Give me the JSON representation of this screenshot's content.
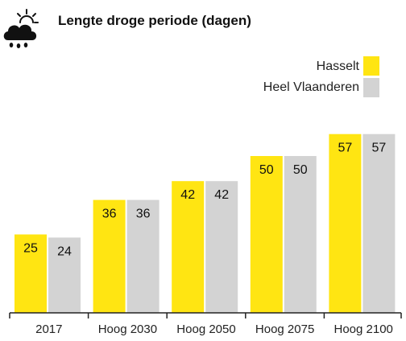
{
  "icon": "sun-cloud-rain-icon",
  "colors": {
    "hasselt": "#FFE512",
    "vlaanderen": "#D3D3D3",
    "axis": "#222222"
  },
  "chart_data": {
    "type": "bar",
    "title": "Lengte droge periode (dagen)",
    "categories": [
      "2017",
      "Hoog 2030",
      "Hoog 2050",
      "Hoog 2075",
      "Hoog 2100"
    ],
    "series": [
      {
        "name": "Hasselt",
        "values": [
          25,
          36,
          42,
          50,
          57
        ]
      },
      {
        "name": "Heel Vlaanderen",
        "values": [
          24,
          36,
          42,
          50,
          57
        ]
      }
    ],
    "legend_position": "top-right",
    "grid": false,
    "ylim": [
      0,
      60
    ]
  }
}
